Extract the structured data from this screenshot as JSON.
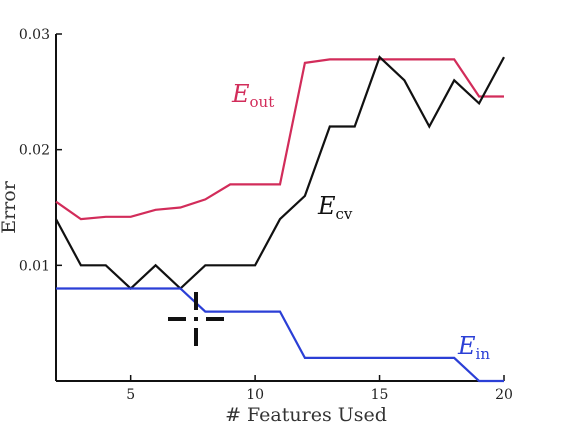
{
  "chart_data": {
    "type": "line",
    "title": "",
    "xlabel": "# Features Used",
    "ylabel": "Error",
    "xlim": [
      2,
      20
    ],
    "ylim": [
      0,
      0.03
    ],
    "xticks": [
      5,
      10,
      15,
      20
    ],
    "xtick_labels": [
      "5",
      "10",
      "15",
      "20"
    ],
    "yticks": [
      0.01,
      0.02,
      0.03
    ],
    "ytick_labels": [
      "0.01",
      "0.02",
      "0.03"
    ],
    "grid": false,
    "legend": "inline labels",
    "series": [
      {
        "name": "E_out",
        "label_main": "E",
        "label_sub": "out",
        "color": "#d22c5a",
        "x": [
          2,
          3,
          4,
          5,
          6,
          7,
          8,
          9,
          10,
          11,
          12,
          13,
          14,
          15,
          16,
          17,
          18,
          19,
          20
        ],
        "y": [
          0.0155,
          0.014,
          0.0142,
          0.0142,
          0.0148,
          0.015,
          0.0157,
          0.017,
          0.017,
          0.017,
          0.0275,
          0.0278,
          0.0278,
          0.0278,
          0.0278,
          0.0278,
          0.0278,
          0.0246,
          0.0246
        ]
      },
      {
        "name": "E_cv",
        "label_main": "E",
        "label_sub": "cv",
        "color": "#111111",
        "x": [
          2,
          3,
          4,
          5,
          6,
          7,
          8,
          9,
          10,
          11,
          12,
          13,
          14,
          15,
          16,
          17,
          18,
          19,
          20
        ],
        "y": [
          0.014,
          0.01,
          0.01,
          0.008,
          0.01,
          0.008,
          0.01,
          0.01,
          0.01,
          0.014,
          0.016,
          0.022,
          0.022,
          0.028,
          0.026,
          0.022,
          0.026,
          0.024,
          0.028
        ]
      },
      {
        "name": "E_in",
        "label_main": "E",
        "label_sub": "in",
        "color": "#2b3fd6",
        "x": [
          2,
          3,
          4,
          5,
          6,
          7,
          8,
          9,
          10,
          11,
          12,
          13,
          14,
          15,
          16,
          17,
          18,
          19,
          20
        ],
        "y": [
          0.008,
          0.008,
          0.008,
          0.008,
          0.008,
          0.008,
          0.006,
          0.006,
          0.006,
          0.006,
          0.002,
          0.002,
          0.002,
          0.002,
          0.002,
          0.002,
          0.002,
          0.0,
          0.0
        ]
      }
    ]
  },
  "cursor": {
    "icon": "crosshair-move-icon",
    "color": "#111111"
  }
}
